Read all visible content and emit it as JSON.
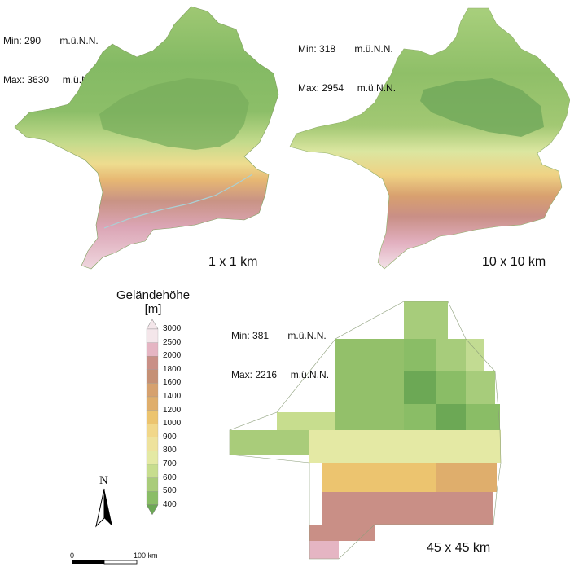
{
  "panels": [
    {
      "id": "1km",
      "min_label": "Min:",
      "min_value": "290",
      "max_label": "Max:",
      "max_value": "3630",
      "unit": "m.ü.N.N.",
      "resolution": "1 x 1 km"
    },
    {
      "id": "10km",
      "min_label": "Min:",
      "min_value": "318",
      "max_label": "Max:",
      "max_value": "2954",
      "unit": "m.ü.N.N.",
      "resolution": "10 x 10 km"
    },
    {
      "id": "45km",
      "min_label": "Min:",
      "min_value": "381",
      "max_label": "Max:",
      "max_value": "2216",
      "unit": "m.ü.N.N.",
      "resolution": "45 x 45 km"
    }
  ],
  "legend": {
    "title": "Geländehöhe",
    "unit": "[m]",
    "classes": [
      "3000",
      "2500",
      "2000",
      "1800",
      "1600",
      "1400",
      "1200",
      "1000",
      "900",
      "800",
      "700",
      "600",
      "500",
      "400"
    ],
    "colors": [
      "#f4e6ea",
      "#e5b5c3",
      "#c98f86",
      "#c59075",
      "#d6a16e",
      "#dfae6c",
      "#ecc46f",
      "#f1d78a",
      "#eee29d",
      "#e4e9a4",
      "#c7dd8e",
      "#a9cc7a",
      "#8abd66",
      "#6ca855"
    ]
  },
  "north": {
    "label": "N"
  },
  "scale_bar": {
    "start": "0",
    "end": "100 km"
  }
}
